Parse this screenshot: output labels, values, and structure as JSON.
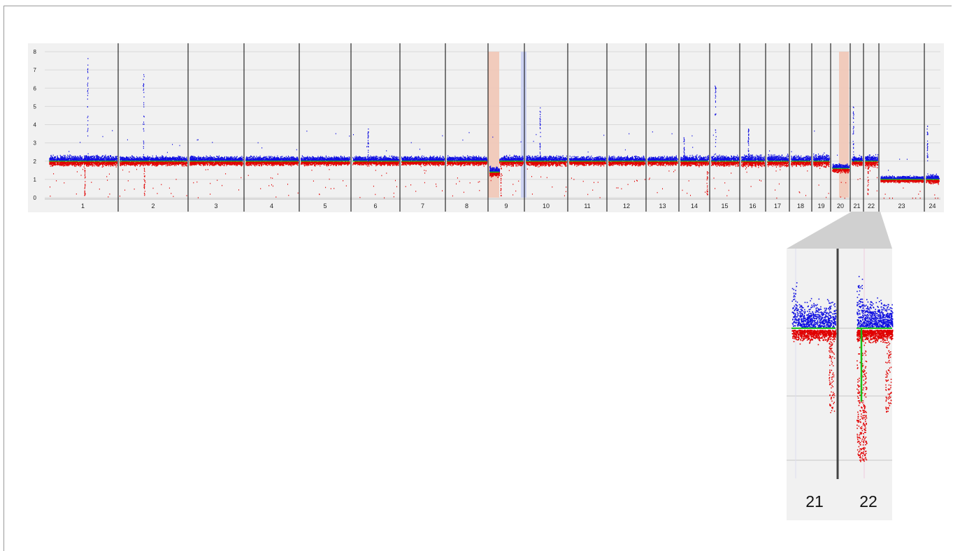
{
  "chart_data": [
    {
      "type": "scatter",
      "title": "",
      "xlabel": "",
      "ylabel": "",
      "ylim": [
        0,
        8
      ],
      "yticks": [
        "0",
        "1",
        "2",
        "3",
        "4",
        "5",
        "6",
        "7",
        "8"
      ],
      "grid": true,
      "categories": [
        "1",
        "2",
        "3",
        "4",
        "5",
        "6",
        "7",
        "8",
        "9",
        "10",
        "11",
        "12",
        "13",
        "14",
        "15",
        "16",
        "17",
        "18",
        "19",
        "20",
        "21",
        "22",
        "23",
        "24"
      ],
      "chromosomes": [
        {
          "label": "1",
          "baseline": 2,
          "spread": 0.35
        },
        {
          "label": "2",
          "baseline": 2,
          "spread": 0.3
        },
        {
          "label": "3",
          "baseline": 2,
          "spread": 0.3
        },
        {
          "label": "4",
          "baseline": 2,
          "spread": 0.3
        },
        {
          "label": "5",
          "baseline": 2,
          "spread": 0.3
        },
        {
          "label": "6",
          "baseline": 2,
          "spread": 0.3
        },
        {
          "label": "7",
          "baseline": 2,
          "spread": 0.3
        },
        {
          "label": "8",
          "baseline": 2,
          "spread": 0.3
        },
        {
          "label": "9",
          "baseline": 2,
          "spread": 0.35
        },
        {
          "label": "10",
          "baseline": 2,
          "spread": 0.35
        },
        {
          "label": "11",
          "baseline": 2,
          "spread": 0.3
        },
        {
          "label": "12",
          "baseline": 2,
          "spread": 0.3
        },
        {
          "label": "13",
          "baseline": 2,
          "spread": 0.3
        },
        {
          "label": "14",
          "baseline": 2,
          "spread": 0.35
        },
        {
          "label": "15",
          "baseline": 2,
          "spread": 0.35
        },
        {
          "label": "16",
          "baseline": 2,
          "spread": 0.4
        },
        {
          "label": "17",
          "baseline": 2,
          "spread": 0.4
        },
        {
          "label": "18",
          "baseline": 2,
          "spread": 0.35
        },
        {
          "label": "19",
          "baseline": 2,
          "spread": 0.45
        },
        {
          "label": "20",
          "baseline": 1.6,
          "spread": 0.3
        },
        {
          "label": "21",
          "baseline": 2,
          "spread": 0.35
        },
        {
          "label": "22",
          "baseline": 2,
          "spread": 0.45
        },
        {
          "label": "23",
          "baseline": 1,
          "spread": 0.2
        },
        {
          "label": "24",
          "baseline": 1,
          "spread": 0.3
        }
      ],
      "highlights": [
        {
          "chromosome": "9",
          "part": "p-arm",
          "color": "#f1c6b6",
          "copy_number": 1.4
        },
        {
          "chromosome": "9",
          "part": "centromere",
          "color": "#c8cef2",
          "copy_number": 2
        },
        {
          "chromosome": "20",
          "part": "whole",
          "color": "#f1c6b6",
          "copy_number": 1.6
        }
      ],
      "series": [
        {
          "color": "#1010e0"
        },
        {
          "color": "#e00000"
        },
        {
          "color": "#18c018"
        }
      ]
    },
    {
      "type": "scatter",
      "title": "",
      "categories": [
        "21",
        "22"
      ],
      "baseline": 2,
      "features": [
        {
          "chromosome": "22",
          "description": "deletion dip",
          "min_value": 0.8
        }
      ]
    }
  ],
  "colors": {
    "background": "#f1f1f1",
    "grid": "#d9d9d9",
    "separator": "#000000",
    "blue": "#1010e0",
    "red": "#e00000",
    "green": "#18c018",
    "loss_highlight": "#f1c6b6",
    "gain_highlight": "#c8cef2",
    "callout": "#d0d0d0"
  }
}
